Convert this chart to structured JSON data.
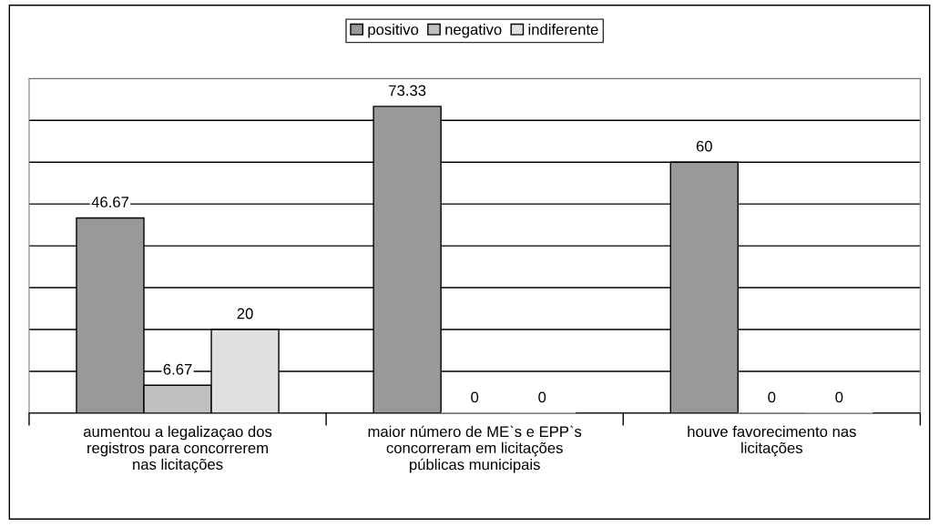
{
  "chart_data": {
    "type": "bar",
    "categories": [
      "aumentou a legalizaçao dos\nregistros para concorrerem\nnas licitações",
      "maior número de ME`s e EPP`s\nconcorreram em licitações\npúblicas municipais",
      "houve favorecimento nas\nlicitações"
    ],
    "series": [
      {
        "name": "positivo",
        "color": "#999999",
        "values": [
          46.67,
          73.33,
          60
        ]
      },
      {
        "name": "negativo",
        "color": "#c0c0c0",
        "values": [
          6.67,
          0,
          0
        ]
      },
      {
        "name": "indiferente",
        "color": "#e0e0e0",
        "values": [
          20,
          0,
          0
        ]
      }
    ],
    "ylim": [
      0,
      80
    ],
    "yticks": [
      {
        "value": 0,
        "label": null
      },
      {
        "value": 10,
        "label": null
      },
      {
        "value": 20,
        "label": null
      },
      {
        "value": 30,
        "label": null
      },
      {
        "value": 40,
        "label": null
      },
      {
        "value": 50,
        "label": null
      },
      {
        "value": 60,
        "label": null
      },
      {
        "value": 70,
        "label": null
      },
      {
        "value": 80,
        "label": null
      }
    ],
    "tick_labels": "x",
    "grid": "y",
    "legend": "top",
    "data_labels": true
  }
}
